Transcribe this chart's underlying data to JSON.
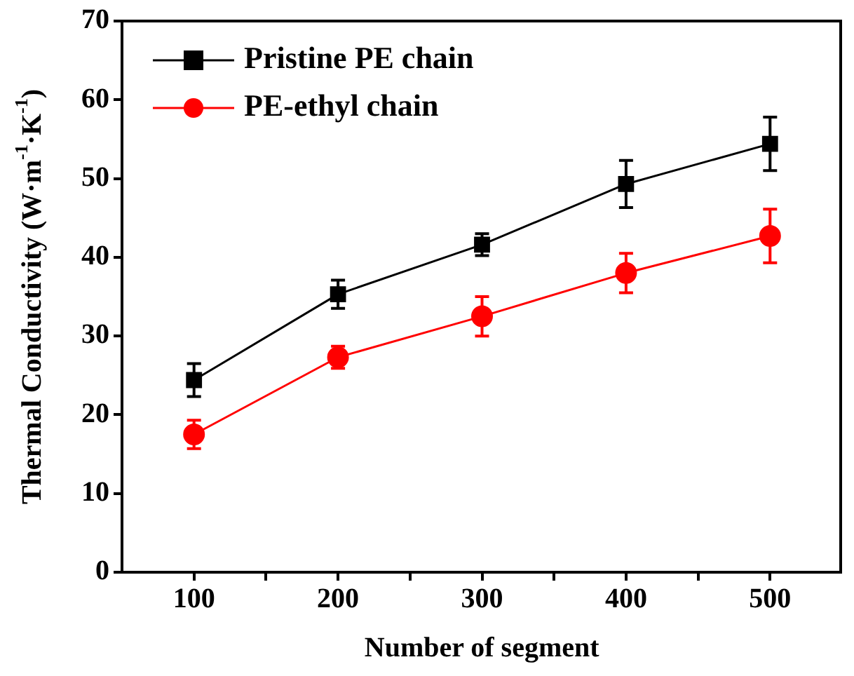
{
  "chart_data": {
    "type": "line",
    "xlabel": "Number of segment",
    "ylabel": "Thermal Conductivity (W·m$^{-1}$·K$^{-1}$)",
    "x": [
      100,
      200,
      300,
      400,
      500
    ],
    "series": [
      {
        "name": "Pristine PE chain",
        "color": "#000000",
        "marker": "square",
        "values": [
          24.4,
          35.3,
          41.6,
          49.3,
          54.4
        ],
        "errors": [
          2.1,
          1.8,
          1.4,
          3,
          3.4
        ]
      },
      {
        "name": "PE-ethyl chain",
        "color": "#ff0000",
        "marker": "circle",
        "values": [
          17.5,
          27.3,
          32.5,
          38,
          42.7
        ],
        "errors": [
          1.8,
          1.4,
          2.5,
          2.5,
          3.4
        ]
      }
    ],
    "xlim": [
      50,
      550
    ],
    "xticks": [
      100,
      {
        "value": 150,
        "label": null
      },
      200,
      {
        "value": 250,
        "label": null
      },
      300,
      {
        "value": 350,
        "label": null
      },
      400,
      {
        "value": 450,
        "label": null
      },
      500
    ],
    "ylim": [
      0,
      70
    ],
    "yticks": [
      0,
      10,
      20,
      30,
      40,
      50,
      60,
      70
    ],
    "grid": false,
    "legend": "top left",
    "line_style": "solid"
  }
}
